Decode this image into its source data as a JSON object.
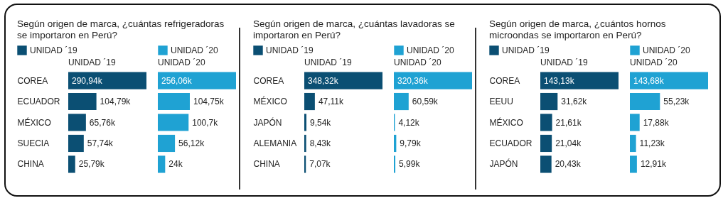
{
  "chart_data": [
    {
      "type": "bar",
      "orientation": "horizontal",
      "title": "Según origen de marca, ¿cuántas refrigeradoras se importaron en Perú?",
      "categories": [
        "COREA",
        "ECUADOR",
        "MÉXICO",
        "SUECIA",
        "CHINA"
      ],
      "legend": "top left",
      "series": [
        {
          "name": "UNIDAD ´19",
          "color": "#0b4f73",
          "values": [
            290.94,
            104.79,
            65.76,
            57.74,
            25.79
          ],
          "value_labels": [
            "290,94k",
            "104,79k",
            "65,76k",
            "57,74k",
            "25,79k"
          ]
        }
      ]
    },
    {
      "type": "bar",
      "orientation": "horizontal",
      "categories": [
        null,
        null,
        null,
        null,
        null
      ],
      "tick_labels": false,
      "legend": "top left",
      "series": [
        {
          "name": "UNIDAD ´20",
          "color": "#1fa2d3",
          "values": [
            256.06,
            104.75,
            100.7,
            56.12,
            24
          ],
          "value_labels": [
            "256,06k",
            "104,75k",
            "100,7k",
            "56,12k",
            "24k"
          ]
        }
      ]
    },
    {
      "type": "bar",
      "orientation": "horizontal",
      "title": "Según origen de marca, ¿cuántas lavadoras se importaron en Perú?",
      "categories": [
        "COREA",
        "MÉXICO",
        "JAPÓN",
        "ALEMANIA",
        "CHINA"
      ],
      "legend": "top left",
      "series": [
        {
          "name": "UNIDAD ´19",
          "color": "#0b4f73",
          "values": [
            348.32,
            47.11,
            9.54,
            8.43,
            7.07
          ],
          "value_labels": [
            "348,32k",
            "47,11k",
            "9,54k",
            "8,43k",
            "7,07k"
          ]
        }
      ]
    },
    {
      "type": "bar",
      "orientation": "horizontal",
      "categories": [
        null,
        null,
        null,
        null,
        null
      ],
      "tick_labels": false,
      "legend": "top left",
      "series": [
        {
          "name": "UNIDAD ´20",
          "color": "#1fa2d3",
          "values": [
            320.36,
            60.59,
            4.12,
            9.79,
            5.99
          ],
          "value_labels": [
            "320,36k",
            "60,59k",
            "4,12k",
            "9,79k",
            "5,99k"
          ]
        }
      ]
    },
    {
      "type": "bar",
      "orientation": "horizontal",
      "title": "Según origen de marca, ¿cuántos hornos microondas se importaron en Perú?",
      "categories": [
        "COREA",
        "EEUU",
        "MÉXICO",
        "ECUADOR",
        "JAPÓN"
      ],
      "legend": "top left",
      "series": [
        {
          "name": "UNIDAD ´19",
          "color": "#0b4f73",
          "values": [
            143.13,
            31.62,
            21.61,
            21.04,
            20.43
          ],
          "value_labels": [
            "143,13k",
            "31,62k",
            "21,61k",
            "21,04k",
            "20,43k"
          ]
        }
      ]
    },
    {
      "type": "bar",
      "orientation": "horizontal",
      "categories": [
        null,
        null,
        null,
        null,
        null
      ],
      "tick_labels": false,
      "legend": "top left",
      "series": [
        {
          "name": "UNIDAD ´20",
          "color": "#1fa2d3",
          "values": [
            143.68,
            55.23,
            17.88,
            11.23,
            12.91
          ],
          "value_labels": [
            "143,68k",
            "55,23k",
            "17,88k",
            "11,23k",
            "12,91k"
          ]
        }
      ]
    }
  ]
}
